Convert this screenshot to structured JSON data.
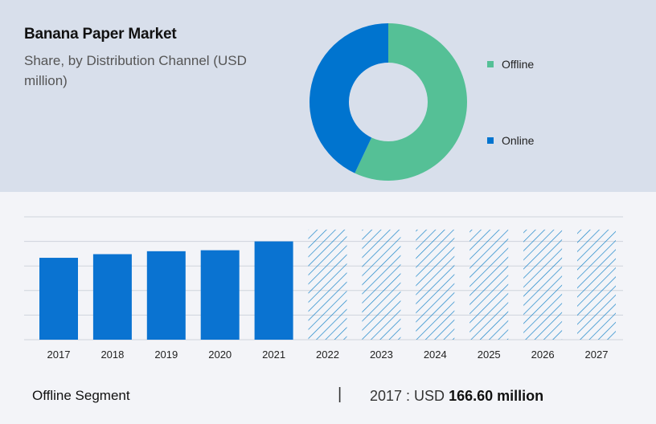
{
  "title": "Banana Paper Market",
  "subtitle": "Share, by Distribution Channel (USD million)",
  "colors": {
    "offline": "#55c096",
    "online": "#0074cf",
    "bar": "#0a73d1",
    "hatch": "#1c86c9",
    "grid": "#cfd3dc"
  },
  "donut": {
    "type": "pie",
    "slices": [
      {
        "label": "Offline",
        "value": 57,
        "color": "#55c096"
      },
      {
        "label": "Online",
        "value": 43,
        "color": "#0074cf"
      }
    ]
  },
  "legend": [
    {
      "label": "Offline",
      "color": "#55c096"
    },
    {
      "label": "Online",
      "color": "#0074cf"
    }
  ],
  "chart_data": {
    "type": "bar",
    "categories": [
      "2017",
      "2018",
      "2019",
      "2020",
      "2021",
      "2022",
      "2023",
      "2024",
      "2025",
      "2026",
      "2027"
    ],
    "values": [
      166.6,
      174,
      180,
      182,
      200,
      224,
      224,
      224,
      224,
      224,
      224
    ],
    "forecast_from_index": 5,
    "ylim": [
      0,
      250
    ],
    "grid": true
  },
  "footer": {
    "segment": "Offline Segment",
    "divider": "|",
    "year_prefix": "2017 :  USD ",
    "value": "166.60 million"
  }
}
